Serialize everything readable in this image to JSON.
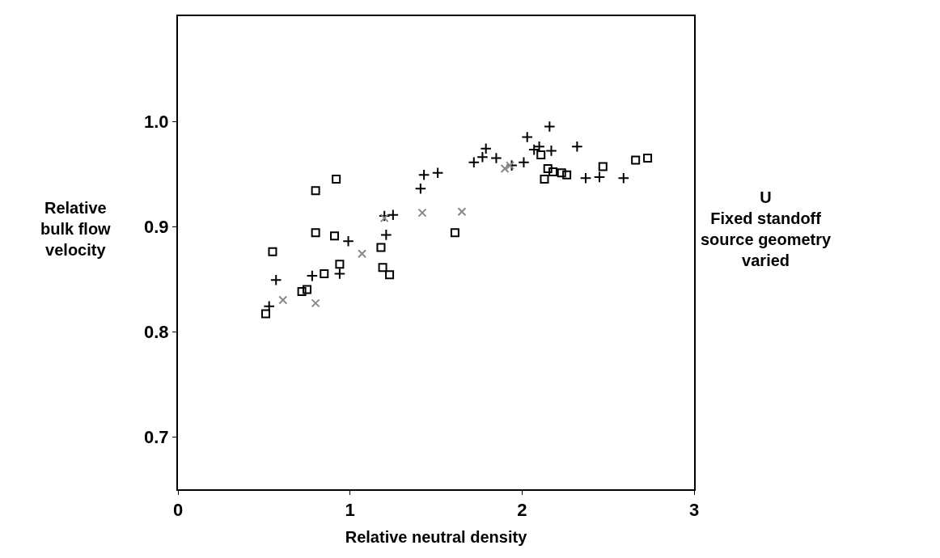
{
  "chart_data": {
    "type": "scatter",
    "xlabel": "Relative neutral density",
    "ylabel": "Relative\nbulk flow\nvelocity",
    "annotations": [
      "U\nFixed standoff\nsource geometry\nvaried"
    ],
    "xlim": [
      0,
      3
    ],
    "xticks": [
      0,
      1,
      2,
      3
    ],
    "ylim": [
      0.65,
      1.1
    ],
    "yticks": [
      {
        "value": 0.7,
        "label": "0.7"
      },
      {
        "value": 0.8,
        "label": "0.8"
      },
      {
        "value": 0.9,
        "label": "0.9"
      },
      {
        "value": 1.0,
        "label": "1.0"
      }
    ],
    "legend": false,
    "series": [
      {
        "marker": "square",
        "color": "#000000",
        "x": [
          0.51,
          0.55,
          0.72,
          0.75,
          0.8,
          0.8,
          0.85,
          0.91,
          0.92,
          0.94,
          1.18,
          1.19,
          1.23,
          1.61,
          2.11,
          2.13,
          2.15,
          2.18,
          2.23,
          2.26,
          2.47,
          2.66,
          2.73
        ],
        "values": [
          0.817,
          0.876,
          0.838,
          0.84,
          0.934,
          0.894,
          0.855,
          0.891,
          0.945,
          0.864,
          0.88,
          0.861,
          0.854,
          0.894,
          0.968,
          0.945,
          0.955,
          0.952,
          0.951,
          0.949,
          0.957,
          0.963,
          0.965
        ]
      },
      {
        "marker": "cross",
        "color": "#000000",
        "x": [
          0.53,
          0.57,
          0.78,
          0.94,
          0.99,
          1.2,
          1.21,
          1.25,
          1.41,
          1.43,
          1.51,
          1.72,
          1.77,
          1.79,
          1.85,
          1.94,
          2.01,
          2.03,
          2.07,
          2.1,
          2.16,
          2.17,
          2.32,
          2.37,
          2.45,
          2.59
        ],
        "values": [
          0.824,
          0.849,
          0.853,
          0.855,
          0.886,
          0.91,
          0.892,
          0.911,
          0.936,
          0.949,
          0.951,
          0.961,
          0.966,
          0.974,
          0.965,
          0.958,
          0.961,
          0.985,
          0.973,
          0.976,
          0.995,
          0.972,
          0.976,
          0.946,
          0.947,
          0.946
        ]
      },
      {
        "marker": "x",
        "color": "#888888",
        "x": [
          0.61,
          0.8,
          1.07,
          1.2,
          1.42,
          1.65,
          1.9,
          1.93
        ],
        "values": [
          0.83,
          0.827,
          0.874,
          0.908,
          0.913,
          0.914,
          0.955,
          0.958
        ]
      }
    ]
  }
}
